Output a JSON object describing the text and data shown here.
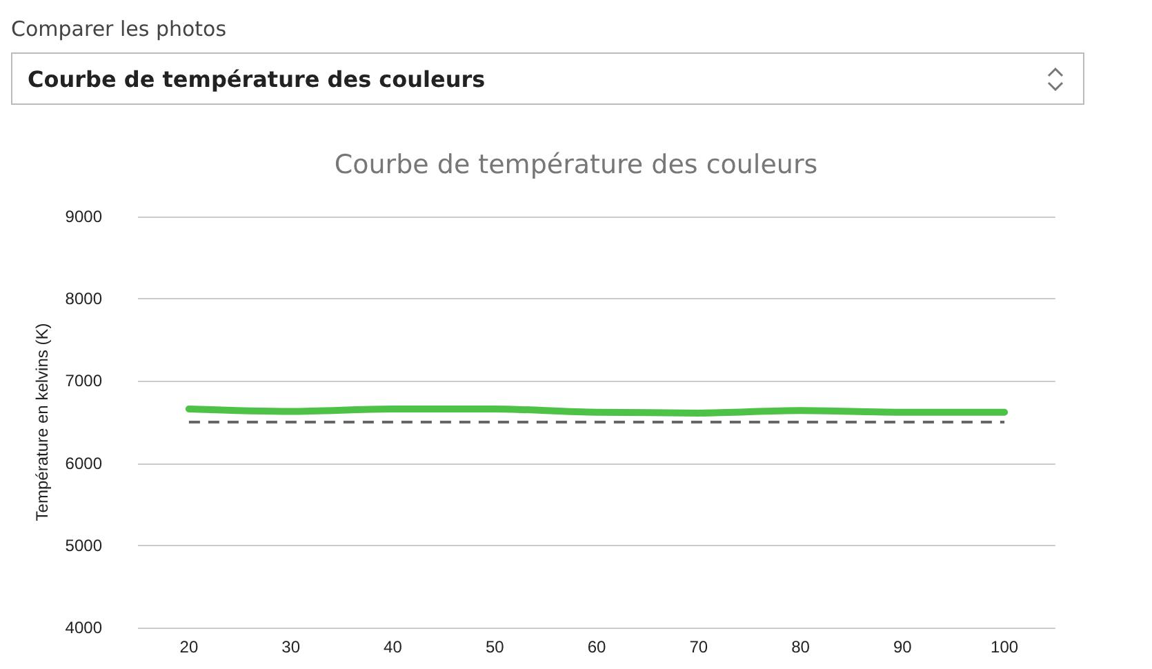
{
  "chart_data": {
    "type": "line",
    "title": "Courbe de température des couleurs",
    "ylabel": "Température en kelvins (K)",
    "annotations": [
      "Comparer les photos",
      "Courbe de température des couleurs"
    ],
    "x": [
      20,
      30,
      40,
      50,
      60,
      70,
      80,
      90,
      100
    ],
    "series": [
      {
        "color": "#4dc247",
        "values": [
          6660,
          6630,
          6660,
          6660,
          6620,
          6610,
          6640,
          6620,
          6620
        ]
      }
    ],
    "ref_lines": [
      {
        "axis": "y",
        "value": 6500,
        "color": "#666666",
        "line_style": "dashed"
      }
    ],
    "xlim": [
      15,
      105
    ],
    "xticks": [
      20,
      30,
      40,
      50,
      60,
      70,
      80,
      90,
      100
    ],
    "ylim": [
      4000,
      9000
    ],
    "yticks": [
      4000,
      5000,
      6000,
      7000,
      8000,
      9000
    ],
    "grid": "y",
    "marker": "none",
    "line_style": "solid"
  }
}
